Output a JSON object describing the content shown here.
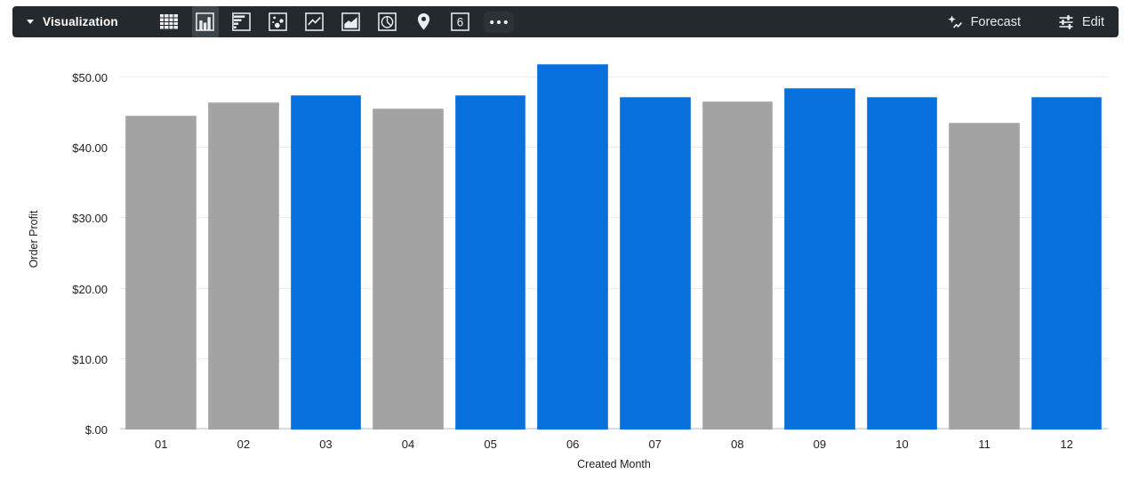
{
  "toolbar": {
    "visualization_label": "Visualization",
    "chart_type_icons": [
      "table-icon",
      "column-chart-icon",
      "bar-chart-icon",
      "scatter-icon",
      "line-chart-icon",
      "area-chart-icon",
      "pie-chart-icon",
      "map-icon",
      "single-value-icon",
      "more-options-icon"
    ],
    "selected_chart_type": "column-chart-icon",
    "single_value_icon_text": "6",
    "forecast_label": "Forecast",
    "edit_label": "Edit",
    "colors": {
      "toolbar_bg": "#24292d",
      "selected_bg": "#3f4449",
      "icon_color": "#ebedef"
    }
  },
  "chart_data": {
    "type": "bar",
    "title": "",
    "xlabel": "Created Month",
    "ylabel": "Order Profit",
    "categories": [
      "01",
      "02",
      "03",
      "04",
      "05",
      "06",
      "07",
      "08",
      "09",
      "10",
      "11",
      "12"
    ],
    "values": [
      44.5,
      46.4,
      47.5,
      45.6,
      47.5,
      51.9,
      47.2,
      46.6,
      48.5,
      47.2,
      43.6,
      47.2
    ],
    "bar_colors": [
      "gray",
      "gray",
      "blue",
      "gray",
      "blue",
      "blue",
      "blue",
      "gray",
      "blue",
      "blue",
      "gray",
      "blue"
    ],
    "palette": {
      "gray": "#a3a3a3",
      "blue": "#0870dd"
    },
    "yticks": [
      {
        "value": 0,
        "label": "$.00"
      },
      {
        "value": 10,
        "label": "$10.00"
      },
      {
        "value": 20,
        "label": "$20.00"
      },
      {
        "value": 30,
        "label": "$30.00"
      },
      {
        "value": 40,
        "label": "$40.00"
      },
      {
        "value": 50,
        "label": "$50.00"
      }
    ],
    "ylim": [
      0,
      53.9
    ],
    "grid": "horizontal",
    "legend": "none"
  }
}
